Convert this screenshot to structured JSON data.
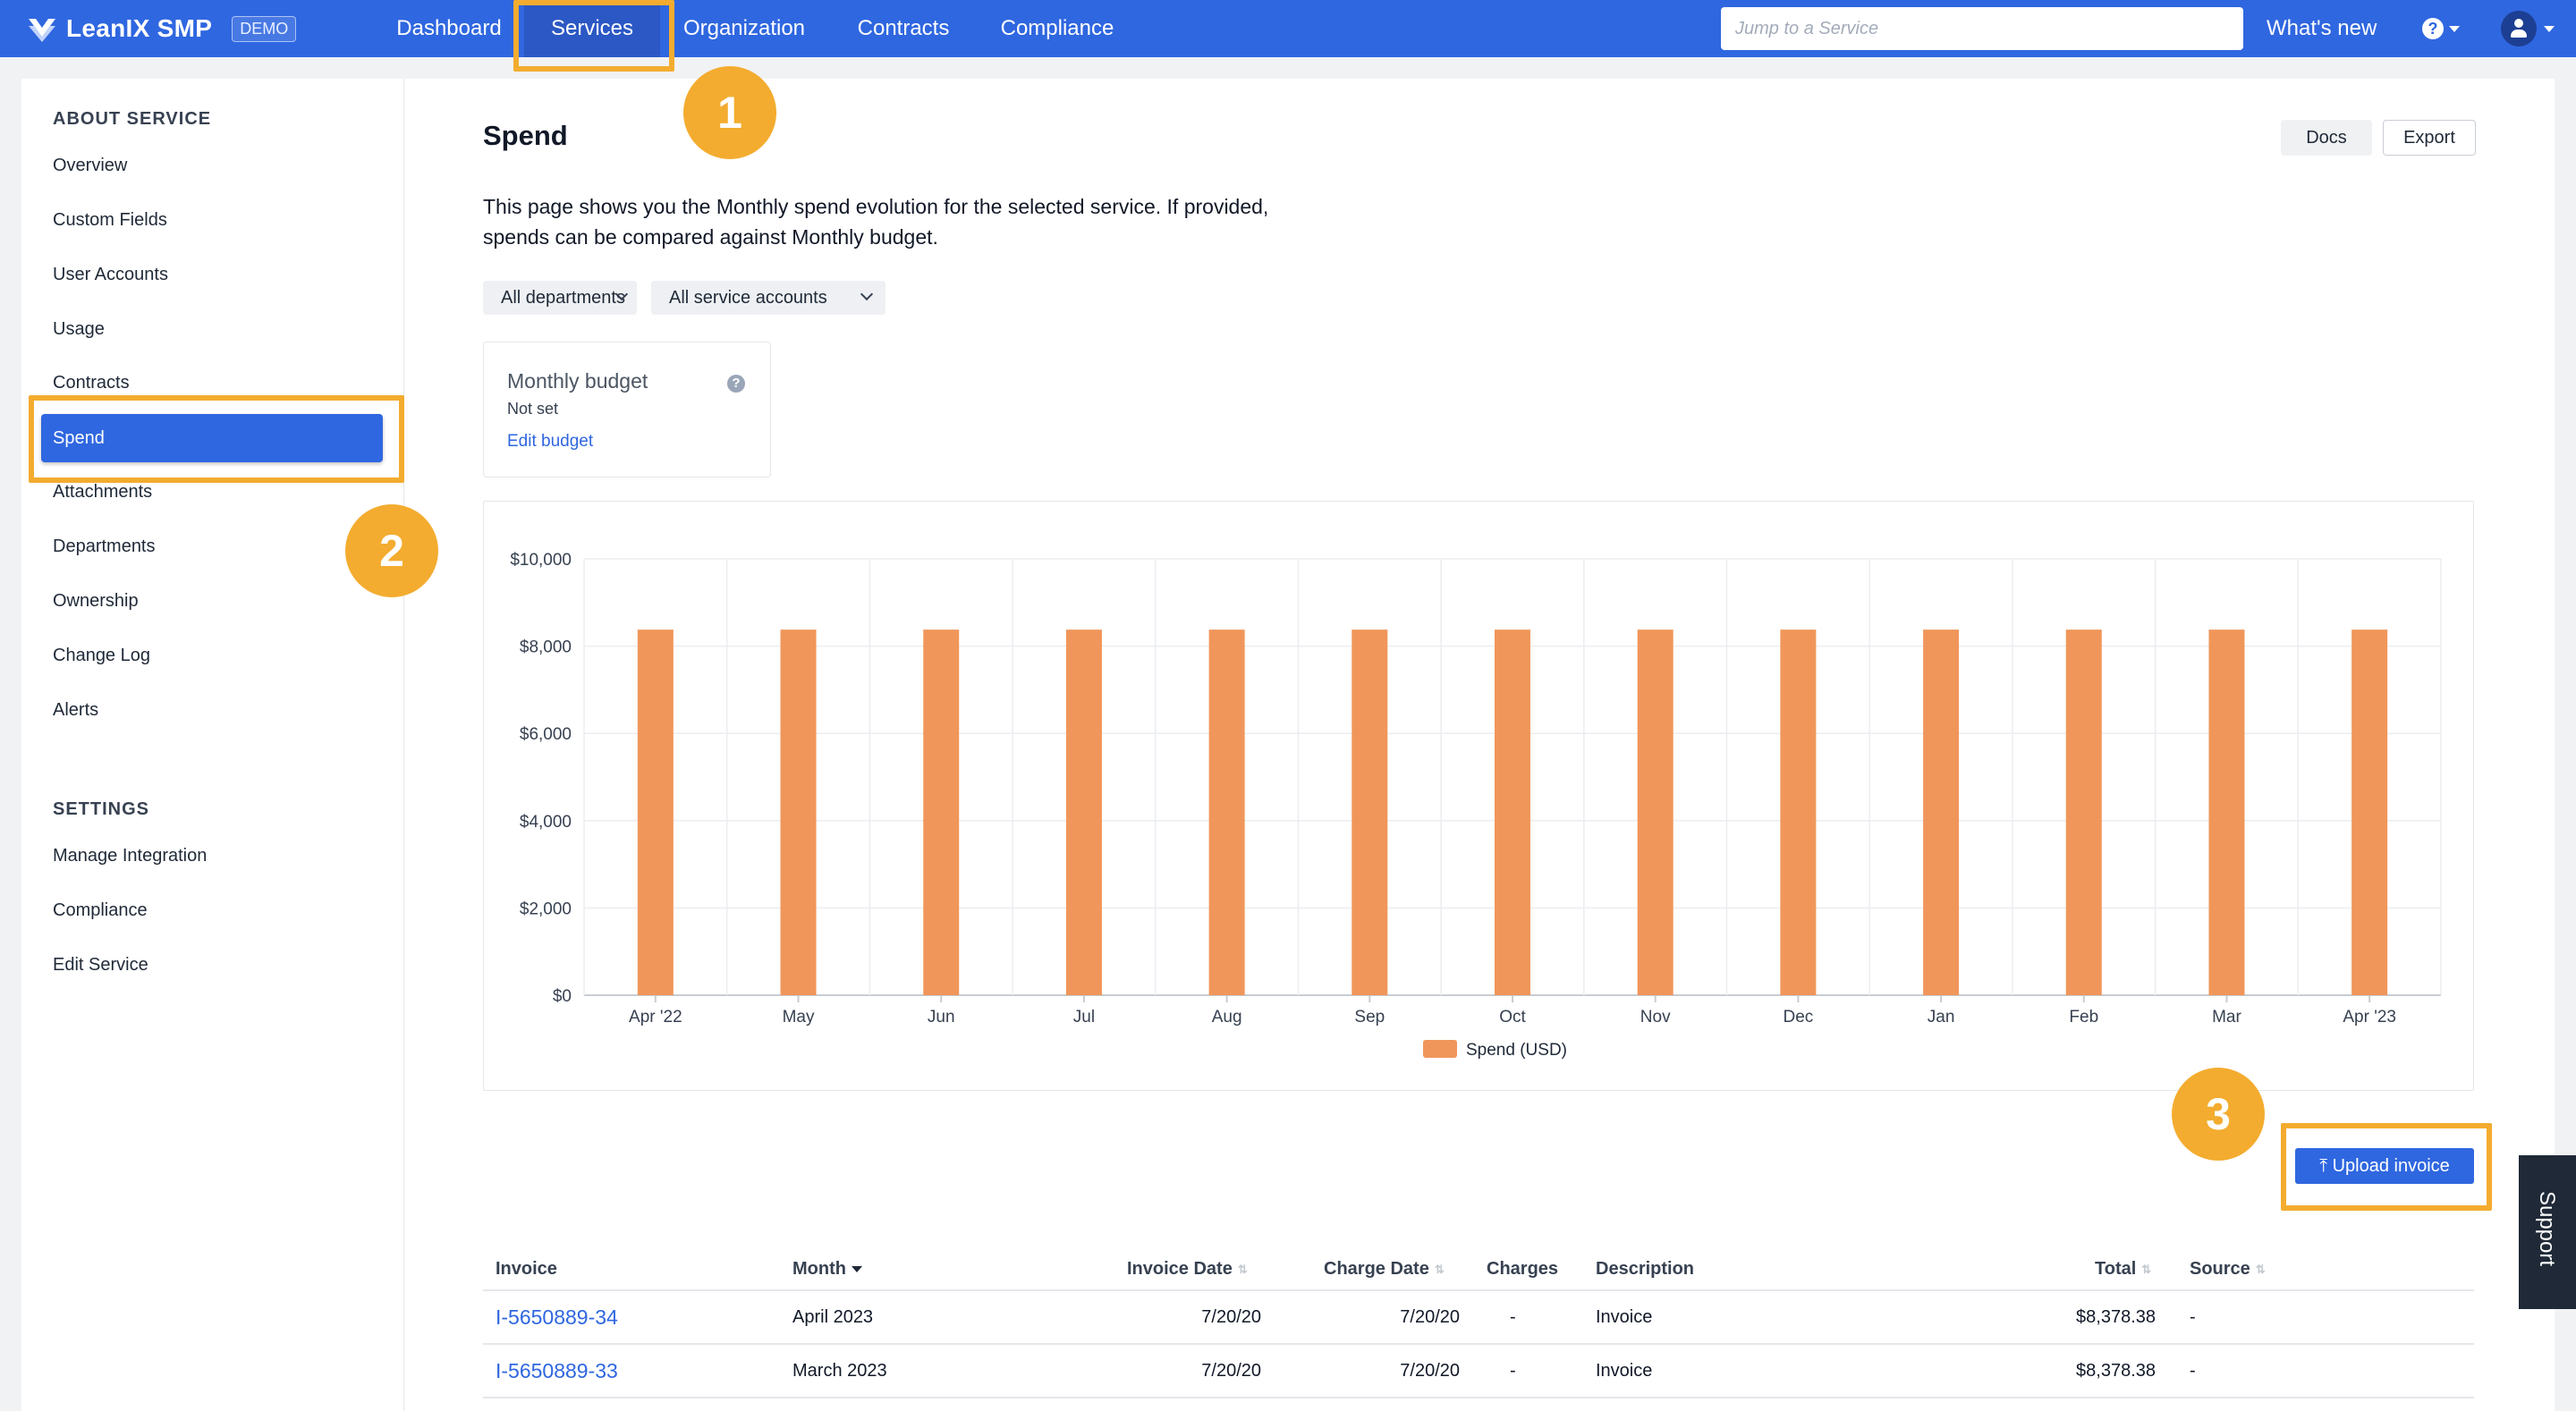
{
  "topbar": {
    "brand": "LeanIX SMP",
    "badge": "DEMO",
    "nav": [
      "Dashboard",
      "Services",
      "Organization",
      "Contracts",
      "Compliance"
    ],
    "search_placeholder": "Jump to a Service",
    "whats_new": "What's new",
    "help_icon": "question-circle-icon",
    "user_icon": "user-avatar-icon"
  },
  "sidebar": {
    "about_title": "ABOUT SERVICE",
    "about_items": [
      "Overview",
      "Custom Fields",
      "User Accounts",
      "Usage",
      "Contracts",
      "Spend",
      "Attachments",
      "Departments",
      "Ownership",
      "Change Log",
      "Alerts"
    ],
    "active": "Spend",
    "settings_title": "SETTINGS",
    "settings_items": [
      "Manage Integration",
      "Compliance",
      "Edit Service"
    ]
  },
  "main": {
    "title": "Spend",
    "docs": "Docs",
    "export": "Export",
    "description": "This page shows you the Monthly spend evolution for the selected service. If provided, spends can be compared against Monthly budget.",
    "filter_departments": "All departments",
    "filter_accounts": "All service accounts",
    "budget": {
      "title": "Monthly budget",
      "value": "Not set",
      "edit": "Edit budget"
    },
    "upload": "Upload invoice"
  },
  "chart_data": {
    "type": "bar",
    "categories": [
      "Apr '22",
      "May",
      "Jun",
      "Jul",
      "Aug",
      "Sep",
      "Oct",
      "Nov",
      "Dec",
      "Jan",
      "Feb",
      "Mar",
      "Apr '23"
    ],
    "series": [
      {
        "name": "Spend (USD)",
        "values": [
          8378.38,
          8378.38,
          8378.38,
          8378.38,
          8378.38,
          8378.38,
          8378.38,
          8378.38,
          8378.38,
          8378.38,
          8378.38,
          8378.38,
          8378.38
        ],
        "color": "#f0965a"
      }
    ],
    "yticks": [
      "$0",
      "$2,000",
      "$4,000",
      "$6,000",
      "$8,000",
      "$10,000"
    ],
    "ylim": [
      0,
      10000
    ],
    "grid": true,
    "legend": "bottom-center"
  },
  "table": {
    "columns": [
      "Invoice",
      "Month",
      "Invoice Date",
      "Charge Date",
      "Charges",
      "Description",
      "Total",
      "Source"
    ],
    "rows": [
      {
        "invoice": "I-5650889-34",
        "month": "April 2023",
        "invoice_date": "7/20/20",
        "charge_date": "7/20/20",
        "charges": "-",
        "description": "Invoice",
        "total": "$8,378.38",
        "source": "-"
      },
      {
        "invoice": "I-5650889-33",
        "month": "March 2023",
        "invoice_date": "7/20/20",
        "charge_date": "7/20/20",
        "charges": "-",
        "description": "Invoice",
        "total": "$8,378.38",
        "source": "-"
      }
    ]
  },
  "annotations": [
    "1",
    "2",
    "3"
  ],
  "support": "Support",
  "colors": {
    "brand": "#2f67e0",
    "highlight": "#f3ac2f",
    "bar": "#f0965a"
  }
}
